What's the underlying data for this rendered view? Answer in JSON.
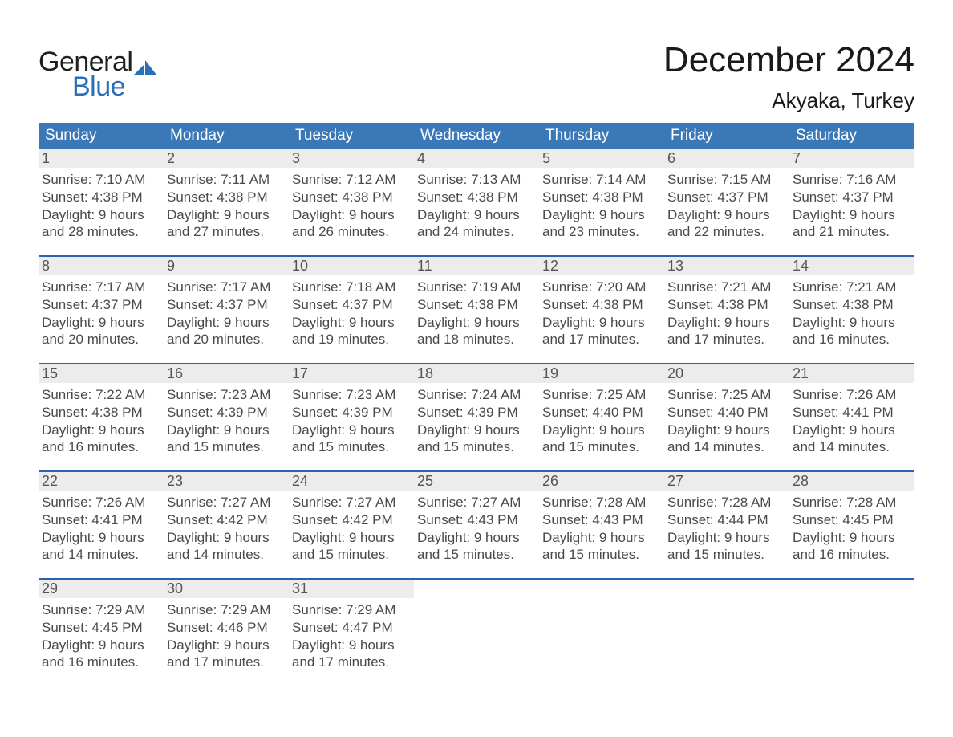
{
  "logo": {
    "word1": "General",
    "word2": "Blue"
  },
  "title": "December 2024",
  "location": "Akyaka, Turkey",
  "colors": {
    "header_blue": "#3b78b8",
    "divider_blue": "#2962b0",
    "daynum_bg": "#ececec",
    "text_dark": "#333333",
    "logo_blue": "#2b6fb7"
  },
  "day_names": [
    "Sunday",
    "Monday",
    "Tuesday",
    "Wednesday",
    "Thursday",
    "Friday",
    "Saturday"
  ],
  "fonts": {
    "title_pt": 44,
    "location_pt": 26,
    "dow_pt": 19,
    "daynum_pt": 18,
    "body_pt": 17
  },
  "layout": {
    "columns": 7,
    "rows": 5,
    "first_weekday_index": 0,
    "num_days": 31
  },
  "days": [
    {
      "n": 1,
      "sunrise": "7:10 AM",
      "sunset": "4:38 PM",
      "dh": 9,
      "dm": 28
    },
    {
      "n": 2,
      "sunrise": "7:11 AM",
      "sunset": "4:38 PM",
      "dh": 9,
      "dm": 27
    },
    {
      "n": 3,
      "sunrise": "7:12 AM",
      "sunset": "4:38 PM",
      "dh": 9,
      "dm": 26
    },
    {
      "n": 4,
      "sunrise": "7:13 AM",
      "sunset": "4:38 PM",
      "dh": 9,
      "dm": 24
    },
    {
      "n": 5,
      "sunrise": "7:14 AM",
      "sunset": "4:38 PM",
      "dh": 9,
      "dm": 23
    },
    {
      "n": 6,
      "sunrise": "7:15 AM",
      "sunset": "4:37 PM",
      "dh": 9,
      "dm": 22
    },
    {
      "n": 7,
      "sunrise": "7:16 AM",
      "sunset": "4:37 PM",
      "dh": 9,
      "dm": 21
    },
    {
      "n": 8,
      "sunrise": "7:17 AM",
      "sunset": "4:37 PM",
      "dh": 9,
      "dm": 20
    },
    {
      "n": 9,
      "sunrise": "7:17 AM",
      "sunset": "4:37 PM",
      "dh": 9,
      "dm": 20
    },
    {
      "n": 10,
      "sunrise": "7:18 AM",
      "sunset": "4:37 PM",
      "dh": 9,
      "dm": 19
    },
    {
      "n": 11,
      "sunrise": "7:19 AM",
      "sunset": "4:38 PM",
      "dh": 9,
      "dm": 18
    },
    {
      "n": 12,
      "sunrise": "7:20 AM",
      "sunset": "4:38 PM",
      "dh": 9,
      "dm": 17
    },
    {
      "n": 13,
      "sunrise": "7:21 AM",
      "sunset": "4:38 PM",
      "dh": 9,
      "dm": 17
    },
    {
      "n": 14,
      "sunrise": "7:21 AM",
      "sunset": "4:38 PM",
      "dh": 9,
      "dm": 16
    },
    {
      "n": 15,
      "sunrise": "7:22 AM",
      "sunset": "4:38 PM",
      "dh": 9,
      "dm": 16
    },
    {
      "n": 16,
      "sunrise": "7:23 AM",
      "sunset": "4:39 PM",
      "dh": 9,
      "dm": 15
    },
    {
      "n": 17,
      "sunrise": "7:23 AM",
      "sunset": "4:39 PM",
      "dh": 9,
      "dm": 15
    },
    {
      "n": 18,
      "sunrise": "7:24 AM",
      "sunset": "4:39 PM",
      "dh": 9,
      "dm": 15
    },
    {
      "n": 19,
      "sunrise": "7:25 AM",
      "sunset": "4:40 PM",
      "dh": 9,
      "dm": 15
    },
    {
      "n": 20,
      "sunrise": "7:25 AM",
      "sunset": "4:40 PM",
      "dh": 9,
      "dm": 14
    },
    {
      "n": 21,
      "sunrise": "7:26 AM",
      "sunset": "4:41 PM",
      "dh": 9,
      "dm": 14
    },
    {
      "n": 22,
      "sunrise": "7:26 AM",
      "sunset": "4:41 PM",
      "dh": 9,
      "dm": 14
    },
    {
      "n": 23,
      "sunrise": "7:27 AM",
      "sunset": "4:42 PM",
      "dh": 9,
      "dm": 14
    },
    {
      "n": 24,
      "sunrise": "7:27 AM",
      "sunset": "4:42 PM",
      "dh": 9,
      "dm": 15
    },
    {
      "n": 25,
      "sunrise": "7:27 AM",
      "sunset": "4:43 PM",
      "dh": 9,
      "dm": 15
    },
    {
      "n": 26,
      "sunrise": "7:28 AM",
      "sunset": "4:43 PM",
      "dh": 9,
      "dm": 15
    },
    {
      "n": 27,
      "sunrise": "7:28 AM",
      "sunset": "4:44 PM",
      "dh": 9,
      "dm": 15
    },
    {
      "n": 28,
      "sunrise": "7:28 AM",
      "sunset": "4:45 PM",
      "dh": 9,
      "dm": 16
    },
    {
      "n": 29,
      "sunrise": "7:29 AM",
      "sunset": "4:45 PM",
      "dh": 9,
      "dm": 16
    },
    {
      "n": 30,
      "sunrise": "7:29 AM",
      "sunset": "4:46 PM",
      "dh": 9,
      "dm": 17
    },
    {
      "n": 31,
      "sunrise": "7:29 AM",
      "sunset": "4:47 PM",
      "dh": 9,
      "dm": 17
    }
  ],
  "labels": {
    "sunrise": "Sunrise:",
    "sunset": "Sunset:",
    "daylight": "Daylight:",
    "hours": "hours",
    "and": "and",
    "minutes": "minutes."
  }
}
